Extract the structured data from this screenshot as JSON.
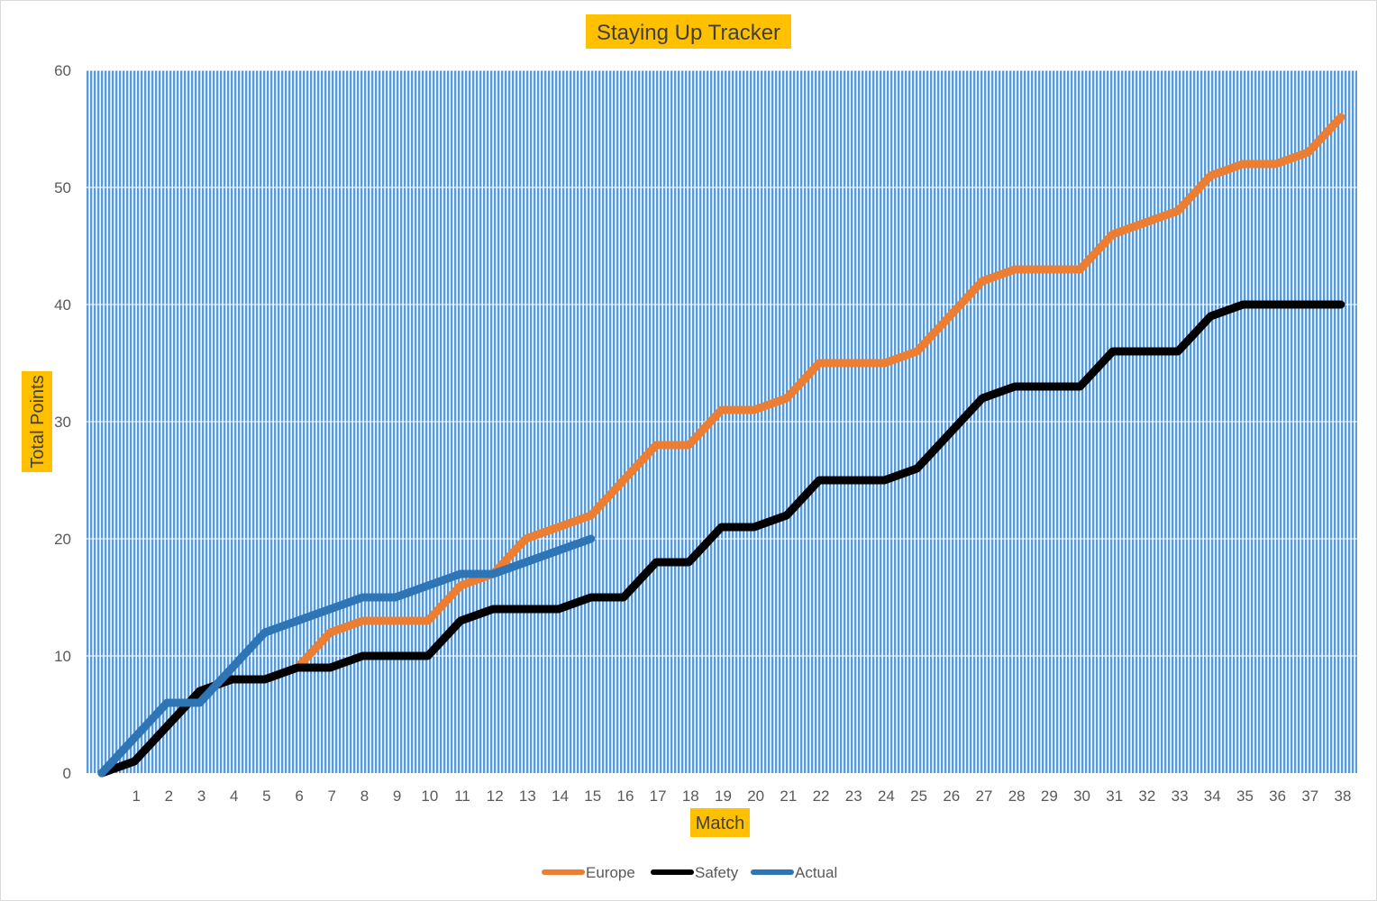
{
  "chart_data": {
    "type": "line",
    "title": "Staying Up Tracker",
    "xlabel": "Match",
    "ylabel": "Total Points",
    "x_categories": [
      "",
      "1",
      "2",
      "3",
      "4",
      "5",
      "6",
      "7",
      "8",
      "9",
      "10",
      "11",
      "12",
      "13",
      "14",
      "15",
      "16",
      "17",
      "18",
      "19",
      "20",
      "21",
      "22",
      "23",
      "24",
      "25",
      "26",
      "27",
      "28",
      "29",
      "30",
      "31",
      "32",
      "33",
      "34",
      "35",
      "36",
      "37",
      "38"
    ],
    "ylim": [
      0,
      60
    ],
    "yticks": [
      0,
      10,
      20,
      30,
      40,
      50,
      60
    ],
    "grid": true,
    "plot_background": "striped blue",
    "legend_position": "bottom",
    "series": [
      {
        "name": "Europe",
        "color": "#ED7D31",
        "values": [
          0,
          1,
          4,
          7,
          8,
          8,
          9,
          12,
          13,
          13,
          13,
          16,
          17,
          20,
          21,
          22,
          25,
          28,
          28,
          31,
          31,
          32,
          35,
          35,
          35,
          36,
          39,
          42,
          43,
          43,
          43,
          46,
          47,
          48,
          51,
          52,
          52,
          53,
          56
        ]
      },
      {
        "name": "Safety",
        "color": "#000000",
        "values": [
          0,
          1,
          4,
          7,
          8,
          8,
          9,
          9,
          10,
          10,
          10,
          13,
          14,
          14,
          14,
          15,
          15,
          18,
          18,
          21,
          21,
          22,
          25,
          25,
          25,
          26,
          29,
          32,
          33,
          33,
          33,
          36,
          36,
          36,
          39,
          40,
          40,
          40,
          40
        ]
      },
      {
        "name": "Actual",
        "color": "#2E75B6",
        "values": [
          0,
          3,
          6,
          6,
          9,
          12,
          13,
          14,
          15,
          15,
          16,
          17,
          17,
          18,
          19,
          20
        ]
      }
    ]
  },
  "colors": {
    "title_highlight": "#FFC000",
    "stripe_blue": "#5B9BD5",
    "gridline": "#FFFFFF"
  }
}
